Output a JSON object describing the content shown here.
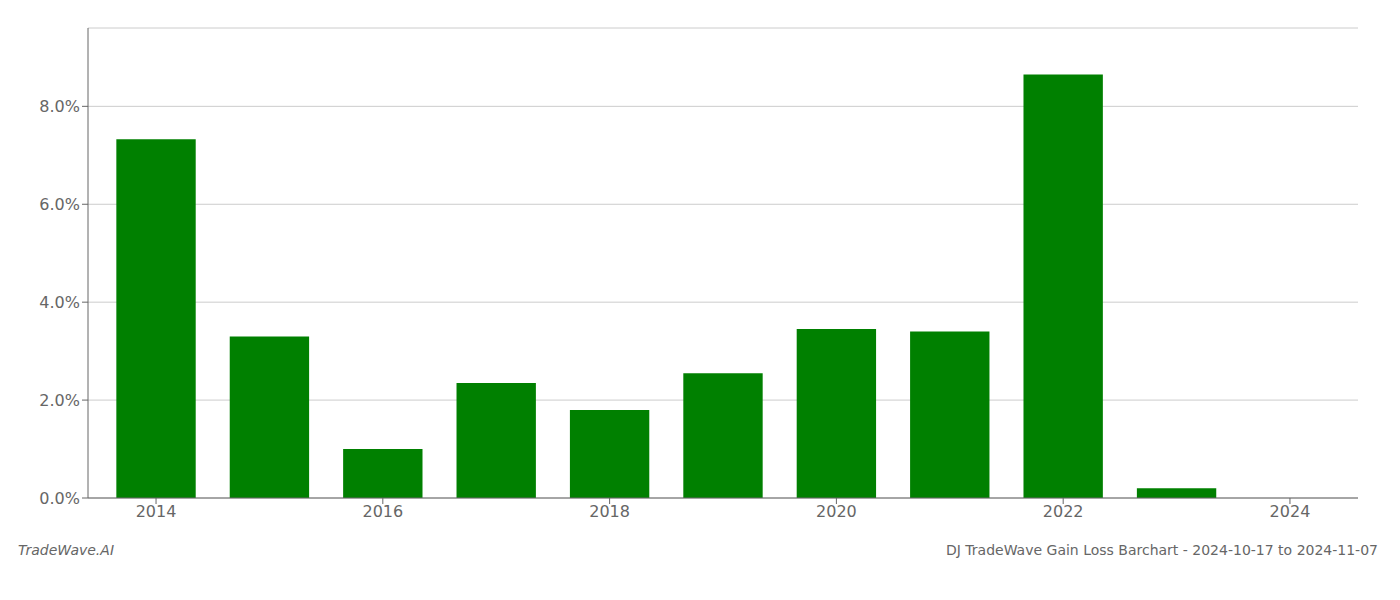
{
  "chart_data": {
    "type": "bar",
    "title": "DJ TradeWave Gain Loss Barchart - 2024-10-17 to 2024-11-07",
    "annotations": [
      "TradeWave.AI"
    ],
    "x": [
      2014,
      2015,
      2016,
      2017,
      2018,
      2019,
      2020,
      2021,
      2022,
      2023
    ],
    "values": [
      0.0733,
      0.033,
      0.01,
      0.0235,
      0.018,
      0.0255,
      0.0345,
      0.034,
      0.0865,
      0.002
    ],
    "color": "#008000",
    "xlim": [
      2013.4,
      2024.6
    ],
    "xticks": [
      2014,
      2016,
      2018,
      2020,
      2022,
      2024
    ],
    "ylim": [
      0.0,
      0.096
    ],
    "yticks": [
      {
        "value": 0.0,
        "label": "0.0%"
      },
      {
        "value": 0.02,
        "label": "2.0%"
      },
      {
        "value": 0.04,
        "label": "4.0%"
      },
      {
        "value": 0.06,
        "label": "6.0%"
      },
      {
        "value": 0.08,
        "label": "8.0%"
      }
    ],
    "grid": true
  }
}
